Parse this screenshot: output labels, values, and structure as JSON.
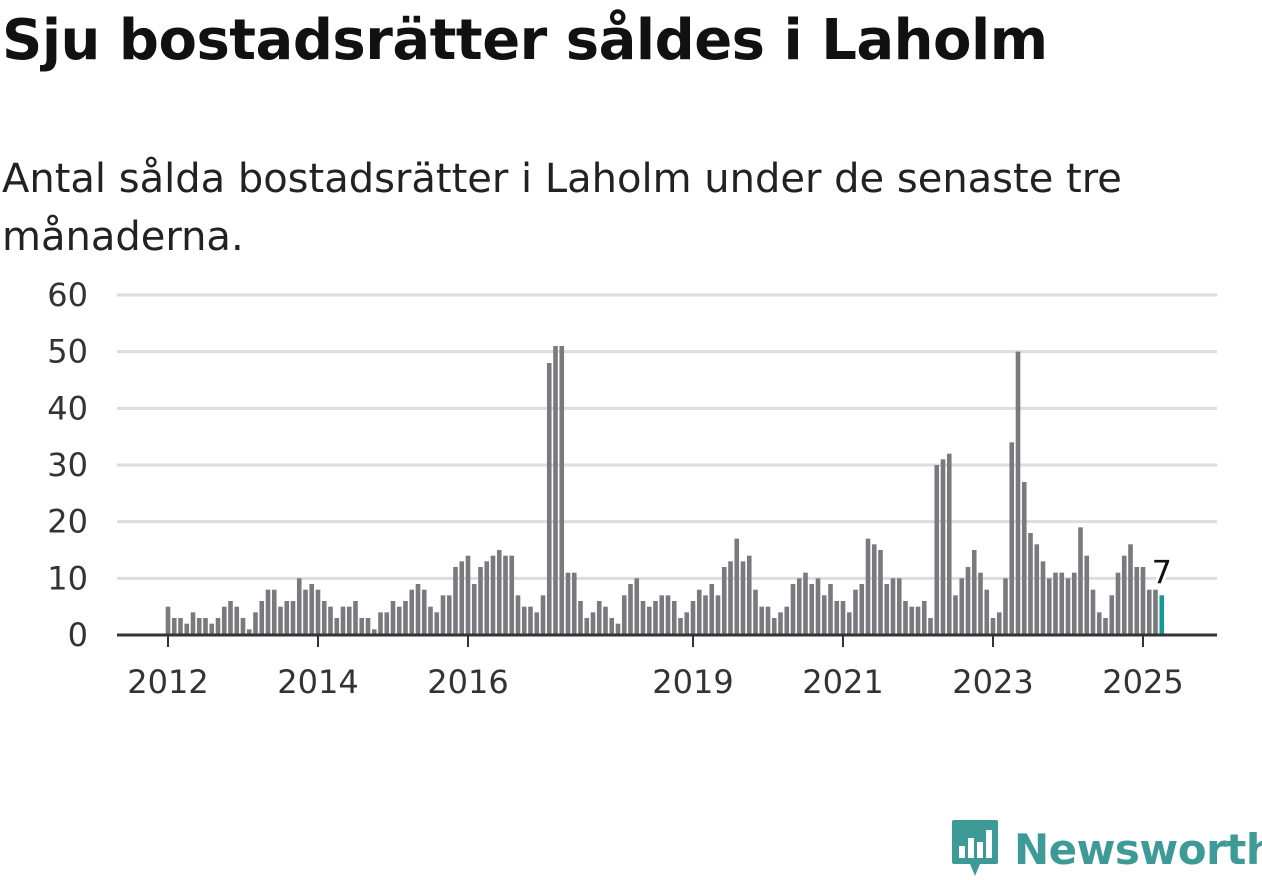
{
  "title": "Sju bostadsrätter såldes i Laholm",
  "subtitle": "Antal sålda bostadsrätter i Laholm under de senaste tre månaderna.",
  "brand": {
    "name": "Newsworthy",
    "icon": "newsworthy-logo-icon",
    "color": "#3d9a97"
  },
  "colors": {
    "bar": "#7a797e",
    "highlight": "#139a94",
    "grid": "#dddddd",
    "axis": "#333333"
  },
  "chart_data": {
    "type": "bar",
    "title": "Sju bostadsrätter såldes i Laholm",
    "subtitle": "Antal sålda bostadsrätter i Laholm under de senaste tre månaderna.",
    "xlabel": "",
    "ylabel": "",
    "ylim": [
      0,
      60
    ],
    "yticks": [
      0,
      10,
      20,
      30,
      40,
      50,
      60
    ],
    "grid": true,
    "legend": "none",
    "start_month": "2012-01",
    "xtick_labels": [
      {
        "label": "2012",
        "index": 0
      },
      {
        "label": "2014",
        "index": 24
      },
      {
        "label": "2016",
        "index": 48
      },
      {
        "label": "2019",
        "index": 84
      },
      {
        "label": "2021",
        "index": 108
      },
      {
        "label": "2023",
        "index": 132
      },
      {
        "label": "2025",
        "index": 156
      }
    ],
    "highlight_last": true,
    "last_value_label": "7",
    "values": [
      5,
      3,
      3,
      2,
      4,
      3,
      3,
      2,
      3,
      5,
      6,
      5,
      3,
      1,
      4,
      6,
      8,
      8,
      5,
      6,
      6,
      10,
      8,
      9,
      8,
      6,
      5,
      3,
      5,
      5,
      6,
      3,
      3,
      1,
      4,
      4,
      6,
      5,
      6,
      8,
      9,
      8,
      5,
      4,
      7,
      7,
      12,
      13,
      14,
      9,
      12,
      13,
      14,
      15,
      14,
      14,
      7,
      5,
      5,
      4,
      7,
      48,
      51,
      51,
      11,
      11,
      6,
      3,
      4,
      6,
      5,
      3,
      2,
      7,
      9,
      10,
      6,
      5,
      6,
      7,
      7,
      6,
      3,
      4,
      6,
      8,
      7,
      9,
      7,
      12,
      13,
      17,
      13,
      14,
      8,
      5,
      5,
      3,
      4,
      5,
      9,
      10,
      11,
      9,
      10,
      7,
      9,
      6,
      6,
      4,
      8,
      9,
      17,
      16,
      15,
      9,
      10,
      10,
      6,
      5,
      5,
      6,
      3,
      30,
      31,
      32,
      7,
      10,
      12,
      15,
      11,
      8,
      3,
      4,
      10,
      34,
      50,
      27,
      18,
      16,
      13,
      10,
      11,
      11,
      10,
      11,
      19,
      14,
      8,
      4,
      3,
      7,
      11,
      14,
      16,
      12,
      12,
      8,
      8,
      7
    ]
  }
}
